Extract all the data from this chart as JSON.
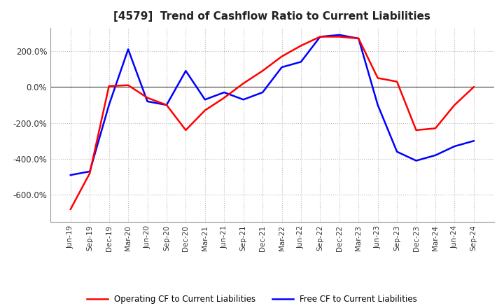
{
  "title": "[4579]  Trend of Cashflow Ratio to Current Liabilities",
  "title_fontsize": 11,
  "legend_labels": [
    "Operating CF to Current Liabilities",
    "Free CF to Current Liabilities"
  ],
  "legend_colors": [
    "red",
    "blue"
  ],
  "x_labels": [
    "Jun-19",
    "Sep-19",
    "Dec-19",
    "Mar-20",
    "Jun-20",
    "Sep-20",
    "Dec-20",
    "Mar-21",
    "Jun-21",
    "Sep-21",
    "Dec-21",
    "Mar-22",
    "Jun-22",
    "Sep-22",
    "Dec-22",
    "Mar-23",
    "Jun-23",
    "Sep-23",
    "Dec-23",
    "Mar-24",
    "Jun-24",
    "Sep-24"
  ],
  "operating_cf": [
    -680,
    -480,
    5,
    10,
    -60,
    -100,
    -240,
    -130,
    -60,
    20,
    90,
    170,
    230,
    280,
    280,
    270,
    50,
    30,
    -240,
    -230,
    -100,
    0
  ],
  "free_cf": [
    -490,
    -470,
    -100,
    210,
    -80,
    -100,
    90,
    -70,
    -30,
    -70,
    -30,
    110,
    140,
    280,
    290,
    270,
    -100,
    -360,
    -410,
    -380,
    -330,
    -300
  ],
  "ylim": [
    -750,
    330
  ],
  "yticks": [
    -600,
    -400,
    -200,
    0,
    200
  ],
  "ytick_labels": [
    "-600.0%",
    "-400.0%",
    "-200.0%",
    "0.0%",
    "200.0%"
  ],
  "background_color": "#ffffff",
  "grid_color": "#bbbbbb",
  "line_width": 1.8
}
